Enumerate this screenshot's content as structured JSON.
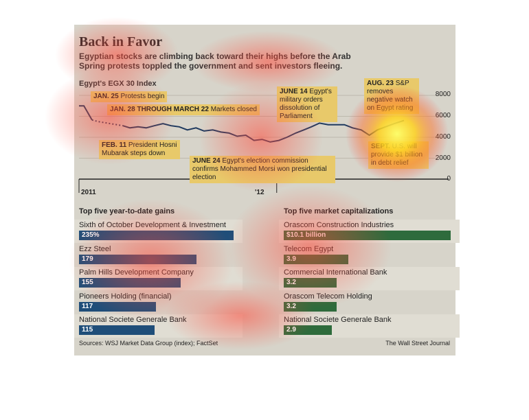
{
  "header": {
    "title": "Back in Favor",
    "subtitle": "Egyptian stocks are climbing back toward their highs before the Arab Spring protests toppled the government and sent investors fleeing."
  },
  "chart_data": [
    {
      "type": "line",
      "title": "Egypt's EGX 30 Index",
      "y_ticks": [
        "8000",
        "6000",
        "4000",
        "2000",
        "0"
      ],
      "ylim": [
        0,
        8000
      ],
      "x_ticks": [
        "2011",
        "'12"
      ],
      "xlim": [
        "2011-01-01",
        "2012-09-30"
      ],
      "series": [
        {
          "x": [
            "2011-01-01",
            "2011-01-10",
            "2011-01-25",
            "2011-02-05",
            "2011-03-23",
            "2011-04-05",
            "2011-04-20",
            "2011-05-05",
            "2011-05-20",
            "2011-06-05",
            "2011-06-20",
            "2011-07-05",
            "2011-07-20",
            "2011-08-05",
            "2011-08-20",
            "2011-09-05",
            "2011-09-20",
            "2011-10-05",
            "2011-10-20",
            "2011-11-05",
            "2011-11-20",
            "2011-12-05",
            "2011-12-20",
            "2012-01-05",
            "2012-01-20",
            "2012-02-05",
            "2012-02-20",
            "2012-03-05",
            "2012-03-20",
            "2012-04-05",
            "2012-04-20",
            "2012-05-05",
            "2012-05-20",
            "2012-06-05",
            "2012-06-20",
            "2012-07-05",
            "2012-07-20",
            "2012-08-05",
            "2012-08-23"
          ],
          "y": [
            7000,
            7000,
            5650,
            5500,
            5100,
            4900,
            5000,
            4900,
            5100,
            5300,
            5100,
            5000,
            4700,
            4900,
            4600,
            4700,
            4500,
            4400,
            4100,
            4200,
            3700,
            3800,
            3550,
            3700,
            4000,
            4400,
            4700,
            5000,
            5350,
            5200,
            5200,
            5200,
            4900,
            4700,
            4200,
            4700,
            5000,
            5300,
            5600
          ]
        }
      ],
      "annotations": [
        {
          "id": "jan25",
          "bold": "JAN. 25",
          "text": "Protests begin"
        },
        {
          "id": "jan28",
          "bold": "JAN. 28 THROUGH MARCH 22",
          "text": "Markets closed"
        },
        {
          "id": "feb11",
          "bold": "FEB. 11",
          "text": "President Hosni Mubarak steps down"
        },
        {
          "id": "jun14",
          "bold": "JUNE 14",
          "text": "Egypt's military orders dissolution of Parliament"
        },
        {
          "id": "jun24",
          "bold": "JUNE 24",
          "text": "Egypt's election commission confirms Mohammed Morsi won presidential election"
        },
        {
          "id": "aug23",
          "bold": "AUG. 23",
          "text": "S&P removes negative watch on Egypt rating"
        },
        {
          "id": "sept",
          "bold": "SEPT.",
          "text": "U.S. will provide $1 billion in debt relief"
        }
      ]
    },
    {
      "type": "bar",
      "title": "Top five year-to-date gains",
      "categories": [
        "Sixth of October Development & Investment",
        "Ezz Steel",
        "Palm Hills Development Company",
        "Pioneers Holding (financial)",
        "National Societe Generale Bank"
      ],
      "values": [
        235,
        179,
        155,
        117,
        115
      ],
      "labels": [
        "235%",
        "179",
        "155",
        "117",
        "115"
      ],
      "color": "#1f4e79"
    },
    {
      "type": "bar",
      "title": "Top five market capitalizations",
      "categories": [
        "Orascom Construction Industries",
        "Telecom Egypt",
        "Commercial International Bank",
        "Orascom Telecom Holding",
        "National Societe Generale Bank"
      ],
      "values": [
        10.1,
        3.9,
        3.2,
        3.2,
        2.9
      ],
      "labels": [
        "$10.1 billion",
        "3.9",
        "3.2",
        "3.2",
        "2.9"
      ],
      "color": "#2e6b3c"
    }
  ],
  "footer": {
    "sources": "Sources: WSJ Market Data Group (index); FactSet",
    "credit": "The Wall Street Journal"
  }
}
